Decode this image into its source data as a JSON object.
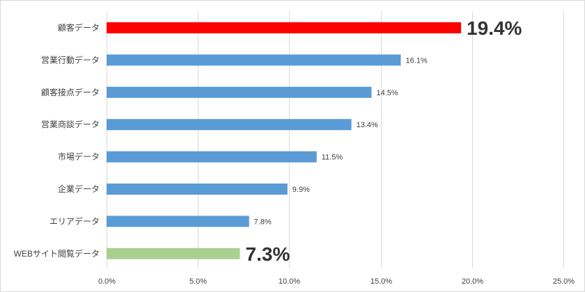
{
  "chart_data": {
    "type": "bar",
    "orientation": "horizontal",
    "categories": [
      "顧客データ",
      "営業行動データ",
      "顧客接点データ",
      "営業商談データ",
      "市場データ",
      "企業データ",
      "エリアデータ",
      "WEBサイト閲覧データ"
    ],
    "values": [
      19.4,
      16.1,
      14.5,
      13.4,
      11.5,
      9.9,
      7.8,
      7.3
    ],
    "data_labels": [
      "19.4%",
      "16.1%",
      "14.5%",
      "13.4%",
      "11.5%",
      "9.9%",
      "7.8%",
      "7.3%"
    ],
    "highlight_labels": [
      0,
      7
    ],
    "bar_colors": [
      "#ff0000",
      "#5b9bd5",
      "#5b9bd5",
      "#5b9bd5",
      "#5b9bd5",
      "#5b9bd5",
      "#5b9bd5",
      "#a9d18e"
    ],
    "xlim": [
      0,
      25
    ],
    "x_ticks": [
      0,
      5,
      10,
      15,
      20,
      25
    ],
    "x_tick_labels": [
      "0.0%",
      "5.0%",
      "10.0%",
      "15.0%",
      "20.0%",
      "25.0%"
    ],
    "grid": "vertical",
    "gridline_color": "#d9d9d9"
  }
}
